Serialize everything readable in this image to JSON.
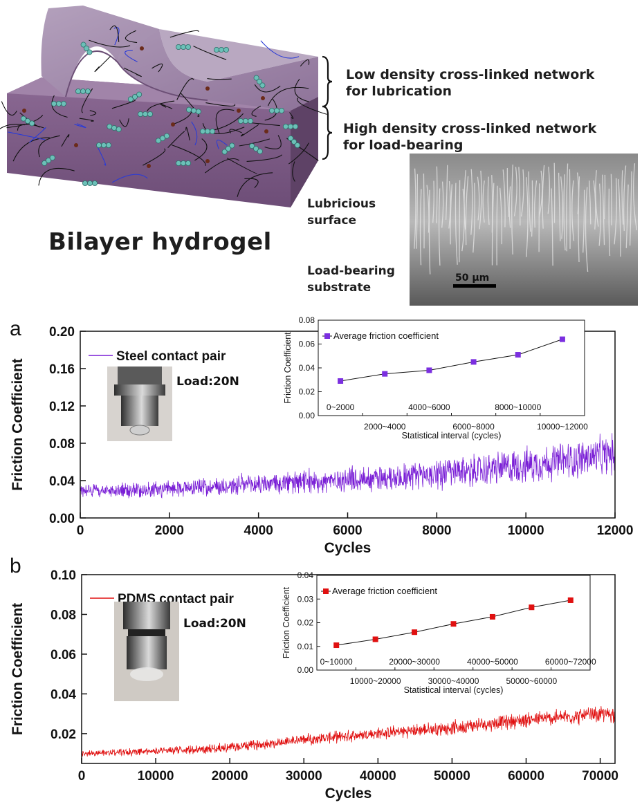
{
  "header": {
    "title": "Bilayer hydrogel",
    "low_density_label": "Low density cross-linked network\nfor lubrication",
    "high_density_label": "High density cross-linked network\nfor load-bearing",
    "lubricious_label": "Lubricious\nsurface",
    "load_bearing_label": "Load-bearing\nsubstrate",
    "scale_bar": "50 µm"
  },
  "colors": {
    "gel_top": "#9a7fa5",
    "gel_bottom": "#7d5a86",
    "series_a": "#7a1fd6",
    "series_b": "#e01010",
    "marker_a": "#7b2fe0",
    "marker_b": "#e01010"
  },
  "icons": [
    "steel-contact-photo",
    "pdms-contact-photo",
    "sem-image",
    "hydrogel-illustration"
  ],
  "chart_data": [
    {
      "id": "a",
      "panel_label": "a",
      "type": "line",
      "xlabel": "Cycles",
      "ylabel": "Friction Coefficient",
      "xlim": [
        0,
        12000
      ],
      "ylim": [
        0,
        0.2
      ],
      "xticks": [
        0,
        2000,
        4000,
        6000,
        8000,
        10000,
        12000
      ],
      "yticks": [
        "0.00",
        "0.04",
        "0.08",
        "0.12",
        "0.16",
        "0.20"
      ],
      "legend": "Steel contact pair",
      "load": "Load:20N",
      "trend": {
        "x": [
          0,
          1000,
          3000,
          5000,
          7000,
          9000,
          11000,
          12000
        ],
        "y": [
          0.03,
          0.029,
          0.034,
          0.038,
          0.044,
          0.051,
          0.062,
          0.068
        ]
      },
      "noise_amplitude": [
        0.006,
        0.02
      ],
      "inset": {
        "type": "line",
        "ylabel": "Friction Coefficient",
        "xlabel": "Statistical interval (cycles)",
        "ylim": [
          0,
          0.08
        ],
        "yticks": [
          "0.00",
          "0.02",
          "0.04",
          "0.06",
          "0.08"
        ],
        "legend": "Average friction coefficient",
        "categories": [
          "0~2000",
          "2000~4000",
          "4000~6000",
          "6000~8000",
          "8000~10000",
          "10000~12000"
        ],
        "values": [
          0.029,
          0.035,
          0.038,
          0.045,
          0.051,
          0.064
        ]
      }
    },
    {
      "id": "b",
      "panel_label": "b",
      "type": "line",
      "xlabel": "Cycles",
      "ylabel": "Friction Coefficient",
      "xlim": [
        0,
        72000
      ],
      "ylim": [
        0.005,
        0.1
      ],
      "xticks": [
        0,
        10000,
        20000,
        30000,
        40000,
        50000,
        60000,
        70000
      ],
      "yticks": [
        "0.02",
        "0.04",
        "0.06",
        "0.08",
        "0.10"
      ],
      "legend": "PDMS contact pair",
      "load": "Load:20N",
      "trend": {
        "x": [
          0,
          10000,
          20000,
          30000,
          40000,
          50000,
          60000,
          72000
        ],
        "y": [
          0.01,
          0.011,
          0.013,
          0.017,
          0.02,
          0.023,
          0.027,
          0.03
        ]
      },
      "noise_amplitude": [
        0.0015,
        0.004
      ],
      "inset": {
        "type": "line",
        "ylabel": "Friction Coefficient",
        "xlabel": "Statistical interval (cycles)",
        "ylim": [
          0,
          0.04
        ],
        "yticks": [
          "0.00",
          "0.01",
          "0.02",
          "0.03",
          "0.04"
        ],
        "legend": "Average friction coefficient",
        "categories": [
          "0~10000",
          "10000~20000",
          "20000~30000",
          "30000~40000",
          "40000~50000",
          "50000~60000",
          "60000~72000"
        ],
        "values": [
          0.0105,
          0.013,
          0.016,
          0.0195,
          0.0225,
          0.0265,
          0.0295
        ]
      }
    }
  ]
}
